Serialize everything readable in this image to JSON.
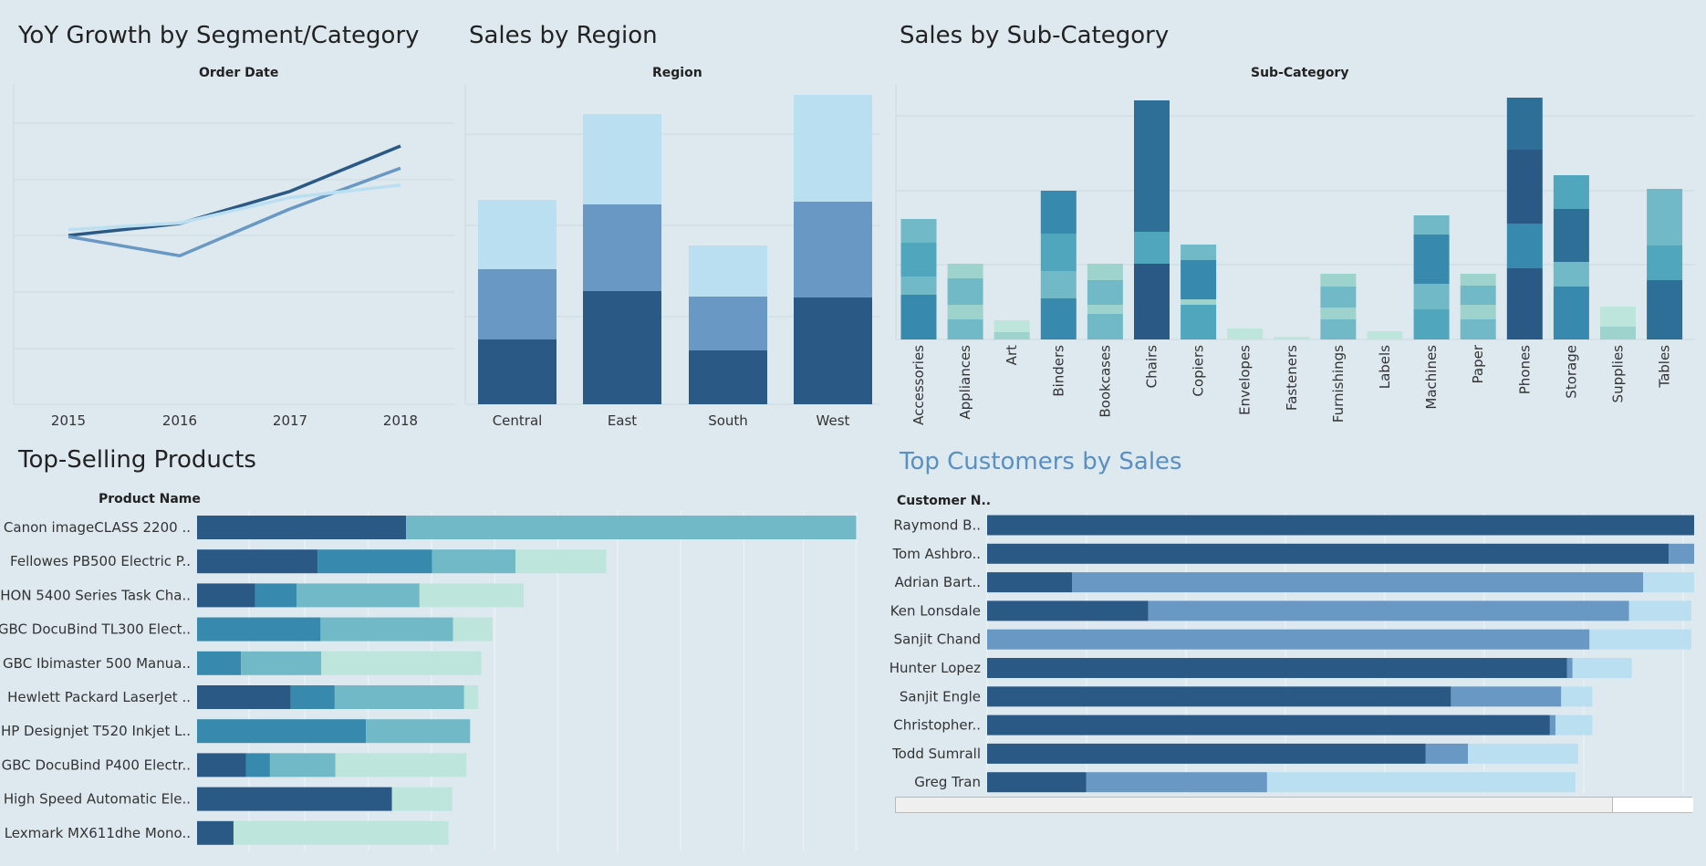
{
  "titles": {
    "yoy": "YoY Growth by Segment/Category",
    "region": "Sales by Region",
    "subcat": "Sales by Sub-Category",
    "products": "Top-Selling Products",
    "customers": "Top Customers by Sales"
  },
  "headers": {
    "yoy": "Order Date",
    "region": "Region",
    "subcat": "Sub-Category",
    "products": "Product Name",
    "customers": "Customer N.."
  },
  "colors": {
    "dark_blue": "#2b5986",
    "mid_blue": "#6898c3",
    "light_blue": "#badff0",
    "teal_dark": "#2e6f98",
    "teal": "#378aad",
    "teal_mid": "#4fa6bd",
    "teal_light": "#72b9c7",
    "mint": "#9dd2cd",
    "mint_light": "#bde5dc"
  },
  "chart_data": [
    {
      "id": "yoy",
      "type": "line",
      "x": [
        "2015",
        "2016",
        "2017",
        "2018"
      ],
      "series": [
        {
          "values": [
            0.0,
            0.21,
            0.78,
            1.58
          ],
          "color": "#2b5986"
        },
        {
          "values": [
            -0.02,
            -0.36,
            0.47,
            1.19
          ],
          "color": "#6898c3"
        },
        {
          "values": [
            0.1,
            0.22,
            0.67,
            0.89
          ],
          "color": "#badff0"
        }
      ]
    },
    {
      "id": "region",
      "type": "bar",
      "categories": [
        "Central",
        "East",
        "South",
        "West"
      ],
      "series": [
        {
          "values": [
            71,
            124,
            59,
            117
          ],
          "color": "#2b5986"
        },
        {
          "values": [
            77,
            95,
            59,
            105
          ],
          "color": "#6898c3"
        },
        {
          "values": [
            76,
            99,
            56,
            117
          ],
          "color": "#badff0"
        }
      ]
    },
    {
      "id": "subcat",
      "type": "bar",
      "categories": [
        "Accessories",
        "Appliances",
        "Art",
        "Binders",
        "Bookcases",
        "Chairs",
        "Copiers",
        "Envelopes",
        "Fasteners",
        "Furnishings",
        "Labels",
        "Machines",
        "Paper",
        "Phones",
        "Storage",
        "Supplies",
        "Tables"
      ],
      "stacks": [
        [
          [
            49,
            "#378aad"
          ],
          [
            20,
            "#72b9c7"
          ],
          [
            37,
            "#4fa6bd"
          ],
          [
            26,
            "#72b9c7"
          ]
        ],
        [
          [
            22,
            "#72b9c7"
          ],
          [
            16,
            "#9dd2cd"
          ],
          [
            29,
            "#72b9c7"
          ],
          [
            16,
            "#9dd2cd"
          ]
        ],
        [
          [
            8,
            "#9dd2cd"
          ],
          [
            13,
            "#bde5dc"
          ]
        ],
        [
          [
            45,
            "#378aad"
          ],
          [
            30,
            "#72b9c7"
          ],
          [
            41,
            "#4fa6bd"
          ],
          [
            47,
            "#378aad"
          ]
        ],
        [
          [
            28,
            "#72b9c7"
          ],
          [
            10,
            "#9dd2cd"
          ],
          [
            27,
            "#72b9c7"
          ],
          [
            18,
            "#9dd2cd"
          ]
        ],
        [
          [
            83,
            "#2b5986"
          ],
          [
            35,
            "#4fa6bd"
          ],
          [
            78,
            "#2e6f98"
          ],
          [
            66,
            "#2e6f98"
          ]
        ],
        [
          [
            38,
            "#4fa6bd"
          ],
          [
            6,
            "#9dd2cd"
          ],
          [
            43,
            "#378aad"
          ],
          [
            17,
            "#72b9c7"
          ]
        ],
        [
          [
            12,
            "#bde5dc"
          ]
        ],
        [
          [
            3,
            "#bde5dc"
          ]
        ],
        [
          [
            22,
            "#72b9c7"
          ],
          [
            13,
            "#9dd2cd"
          ],
          [
            23,
            "#72b9c7"
          ],
          [
            14,
            "#9dd2cd"
          ]
        ],
        [
          [
            9,
            "#bde5dc"
          ]
        ],
        [
          [
            33,
            "#4fa6bd"
          ],
          [
            28,
            "#72b9c7"
          ],
          [
            54,
            "#378aad"
          ],
          [
            21,
            "#72b9c7"
          ]
        ],
        [
          [
            22,
            "#72b9c7"
          ],
          [
            16,
            "#9dd2cd"
          ],
          [
            21,
            "#72b9c7"
          ],
          [
            13,
            "#9dd2cd"
          ]
        ],
        [
          [
            78,
            "#2b5986"
          ],
          [
            49,
            "#378aad"
          ],
          [
            81,
            "#2b5986"
          ],
          [
            57,
            "#2e6f98"
          ]
        ],
        [
          [
            58,
            "#378aad"
          ],
          [
            27,
            "#72b9c7"
          ],
          [
            58,
            "#2e6f98"
          ],
          [
            37,
            "#4fa6bd"
          ]
        ],
        [
          [
            14,
            "#9dd2cd"
          ],
          [
            22,
            "#bde5dc"
          ]
        ],
        [
          [
            65,
            "#2e6f98"
          ],
          [
            38,
            "#4fa6bd"
          ],
          [
            62,
            "#72b9c7"
          ]
        ]
      ]
    },
    {
      "id": "products",
      "type": "bar",
      "orientation": "horizontal",
      "categories": [
        "Canon imageCLASS 2200 ..",
        "Fellowes PB500 Electric P..",
        "HON 5400 Series Task Cha..",
        "GBC DocuBind TL300 Elect..",
        "GBC Ibimaster 500 Manua..",
        "Hewlett Packard LaserJet ..",
        "HP Designjet T520 Inkjet L..",
        "GBC DocuBind P400 Electr..",
        "High Speed Automatic Ele..",
        "Lexmark MX611dhe Mono.."
      ],
      "stacks": [
        [
          [
            28.1,
            "#2b5986"
          ],
          [
            60.5,
            "#72b9c7"
          ]
        ],
        [
          [
            16.2,
            "#2b5986"
          ],
          [
            15.4,
            "#378aad"
          ],
          [
            11.2,
            "#72b9c7"
          ],
          [
            12.2,
            "#bde5dc"
          ]
        ],
        [
          [
            7.8,
            "#2b5986"
          ],
          [
            5.6,
            "#378aad"
          ],
          [
            16.5,
            "#72b9c7"
          ],
          [
            14.0,
            "#bde5dc"
          ]
        ],
        [
          [
            16.6,
            "#378aad"
          ],
          [
            17.8,
            "#72b9c7"
          ],
          [
            5.3,
            "#bde5dc"
          ]
        ],
        [
          [
            5.9,
            "#378aad"
          ],
          [
            10.8,
            "#72b9c7"
          ],
          [
            21.5,
            "#bde5dc"
          ]
        ],
        [
          [
            12.6,
            "#2b5986"
          ],
          [
            5.9,
            "#378aad"
          ],
          [
            17.4,
            "#72b9c7"
          ],
          [
            1.9,
            "#bde5dc"
          ]
        ],
        [
          [
            22.7,
            "#378aad"
          ],
          [
            14.0,
            "#72b9c7"
          ]
        ],
        [
          [
            6.6,
            "#2b5986"
          ],
          [
            3.2,
            "#378aad"
          ],
          [
            8.8,
            "#72b9c7"
          ],
          [
            17.6,
            "#bde5dc"
          ]
        ],
        [
          [
            26.2,
            "#2b5986"
          ],
          [
            8.1,
            "#bde5dc"
          ]
        ],
        [
          [
            4.9,
            "#2b5986"
          ],
          [
            28.9,
            "#bde5dc"
          ]
        ]
      ]
    },
    {
      "id": "customers",
      "type": "bar",
      "orientation": "horizontal",
      "categories": [
        "Raymond B..",
        "Tom Ashbro..",
        "Adrian Bart..",
        "Ken Lonsdale",
        "Sanjit Chand",
        "Hunter Lopez",
        "Sanjit Engle",
        "Christopher..",
        "Todd Sumrall",
        "Greg Tran"
      ],
      "stacks": [
        [
          [
            25.0,
            "#2b5986"
          ]
        ],
        [
          [
            24.1,
            "#2b5986"
          ],
          [
            0.9,
            "#6898c3"
          ]
        ],
        [
          [
            3.0,
            "#2b5986"
          ],
          [
            20.2,
            "#6898c3"
          ],
          [
            1.8,
            "#badff0"
          ]
        ],
        [
          [
            5.7,
            "#2b5986"
          ],
          [
            17.0,
            "#6898c3"
          ],
          [
            2.2,
            "#badff0"
          ]
        ],
        [
          [
            21.3,
            "#6898c3"
          ],
          [
            3.6,
            "#badff0"
          ]
        ],
        [
          [
            20.5,
            "#2b5986"
          ],
          [
            0.2,
            "#6898c3"
          ],
          [
            2.1,
            "#badff0"
          ]
        ],
        [
          [
            16.4,
            "#2b5986"
          ],
          [
            3.9,
            "#6898c3"
          ],
          [
            1.1,
            "#badff0"
          ]
        ],
        [
          [
            19.9,
            "#2b5986"
          ],
          [
            0.2,
            "#6898c3"
          ],
          [
            1.3,
            "#badff0"
          ]
        ],
        [
          [
            15.5,
            "#2b5986"
          ],
          [
            1.5,
            "#6898c3"
          ],
          [
            3.9,
            "#badff0"
          ]
        ],
        [
          [
            3.5,
            "#2b5986"
          ],
          [
            6.4,
            "#6898c3"
          ],
          [
            10.9,
            "#badff0"
          ]
        ]
      ]
    }
  ]
}
